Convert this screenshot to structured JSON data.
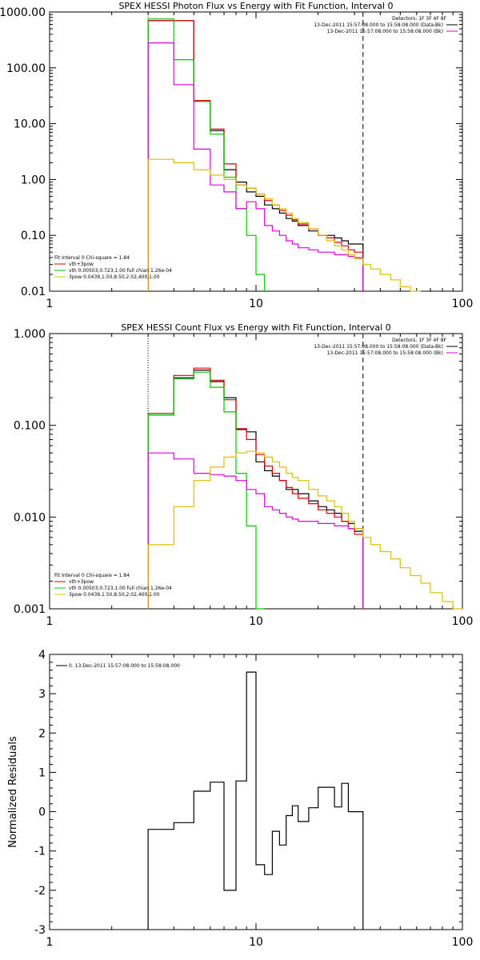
{
  "figure": {
    "colors": {
      "black": "#000000",
      "red": "#e00000",
      "green": "#00c800",
      "magenta": "#e000e0",
      "yellow": "#d8c000"
    }
  },
  "chart_data": [
    {
      "type": "line",
      "title": "SPEX HESSI Photon Flux vs Energy with Fit Function, Interval 0",
      "xlabel": "",
      "ylabel": "",
      "xscale": "log",
      "yscale": "log",
      "xlim": [
        1,
        100
      ],
      "ylim": [
        0.01,
        1000
      ],
      "x_ticks": [
        1,
        10,
        100
      ],
      "x_tick_labels": [
        "1",
        "10",
        "100"
      ],
      "y_ticks": [
        0.01,
        0.1,
        1,
        10,
        100,
        1000
      ],
      "y_tick_labels": [
        "0.01",
        "0.10",
        "1.00",
        "10.00",
        "100.00",
        "1000.00"
      ],
      "grid": false,
      "legend_topright": [
        "Detectors: 1F 3F 4F 8F",
        "13-Dec-2011 15:57:08.000 to 15:58:08.000 (Data-Bk)",
        "13-Dec-2011 15:57:08.000 to 15:58:08.000 (Bk)"
      ],
      "legend_bottomleft": [
        "Fit Interval 0   Chi-square = 1.84",
        "vth+3pow",
        "vth 0.00503,0.723,1.00  full chian 1.26e-04",
        "3pow 0.0439,1.50,8.50,2.02,400,1.00"
      ],
      "vlines": [
        {
          "x": 3,
          "style": "dotted",
          "color": "#000000"
        },
        {
          "x": 33,
          "style": "dashed",
          "color": "#000000"
        }
      ],
      "edges": [
        3,
        4,
        5,
        6,
        7,
        8,
        9,
        10,
        11,
        12,
        13,
        14,
        15,
        16,
        18,
        20,
        22,
        24,
        26,
        28,
        30,
        33,
        36,
        40,
        45,
        50,
        56,
        63
      ],
      "series": [
        {
          "color": "#000000",
          "end": 21,
          "values": [
            700,
            700,
            25,
            7.5,
            1.5,
            0.9,
            0.6,
            0.5,
            0.35,
            0.3,
            0.25,
            0.2,
            0.18,
            0.15,
            0.12,
            0.1,
            0.1,
            0.09,
            0.08,
            0.07,
            0.07
          ]
        },
        {
          "color": "#e00000",
          "end": 21,
          "values": [
            700,
            700,
            26,
            8,
            1.9,
            0.8,
            0.7,
            0.55,
            0.42,
            0.35,
            0.28,
            0.23,
            0.19,
            0.16,
            0.13,
            0.1,
            0.09,
            0.075,
            0.065,
            0.055,
            0.05
          ]
        },
        {
          "color": "#00c800",
          "end": 8,
          "values": [
            750,
            140,
            25,
            6.5,
            1.1,
            0.3,
            0.1,
            0.02
          ]
        },
        {
          "color": "#e000e0",
          "end": 21,
          "values": [
            280,
            50,
            3.5,
            0.8,
            0.6,
            0.3,
            0.4,
            0.3,
            0.15,
            0.12,
            0.1,
            0.08,
            0.07,
            0.06,
            0.055,
            0.05,
            0.05,
            0.045,
            0.045,
            0.042,
            0.04
          ]
        },
        {
          "color": "#d8c000",
          "end": 27,
          "values": [
            2.3,
            2.0,
            1.5,
            1.2,
            1.0,
            0.8,
            0.7,
            0.55,
            0.45,
            0.35,
            0.3,
            0.25,
            0.2,
            0.17,
            0.13,
            0.1,
            0.08,
            0.065,
            0.055,
            0.045,
            0.038,
            0.03,
            0.025,
            0.02,
            0.016,
            0.012,
            0.01
          ]
        }
      ]
    },
    {
      "type": "line",
      "title": "SPEX HESSI Count Flux vs Energy with Fit Function, Interval 0",
      "xlabel": "",
      "ylabel": "",
      "xscale": "log",
      "yscale": "log",
      "xlim": [
        1,
        100
      ],
      "ylim": [
        0.001,
        1
      ],
      "x_ticks": [
        1,
        10,
        100
      ],
      "x_tick_labels": [
        "1",
        "10",
        "100"
      ],
      "y_ticks": [
        0.001,
        0.01,
        0.1,
        1
      ],
      "y_tick_labels": [
        "0.001",
        "0.010",
        "0.100",
        "1.000"
      ],
      "grid": false,
      "legend_topright": [
        "Detectors: 1F 3F 4F 8F",
        "13-Dec-2011 15:57:08.000 to 15:58:08.000 (Data-Bk)",
        "13-Dec-2011 15:57:08.000 to 15:58:08.000 (Bk)"
      ],
      "legend_bottomleft": [
        "Fit Interval 0   Chi-square = 1.84",
        "vth+3pow",
        "vth 0.00503,0.723,1.00  full chian 1.26e-04",
        "3pow 0.0439,1.50,8.50,2.02,400,1.00"
      ],
      "vlines": [
        {
          "x": 3,
          "style": "dotted",
          "color": "#000000"
        },
        {
          "x": 33,
          "style": "dashed",
          "color": "#000000"
        }
      ],
      "edges": [
        3,
        4,
        5,
        6,
        7,
        8,
        9,
        10,
        11,
        12,
        13,
        14,
        15,
        16,
        18,
        20,
        22,
        24,
        26,
        28,
        30,
        33,
        36,
        40,
        45,
        50,
        56,
        63,
        70,
        80,
        90,
        100
      ],
      "series": [
        {
          "color": "#000000",
          "end": 21,
          "values": [
            0.13,
            0.33,
            0.4,
            0.3,
            0.2,
            0.09,
            0.085,
            0.04,
            0.032,
            0.028,
            0.025,
            0.02,
            0.02,
            0.018,
            0.015,
            0.013,
            0.012,
            0.011,
            0.009,
            0.0085,
            0.007
          ]
        },
        {
          "color": "#e00000",
          "end": 21,
          "values": [
            0.135,
            0.35,
            0.42,
            0.31,
            0.19,
            0.092,
            0.07,
            0.048,
            0.036,
            0.03,
            0.025,
            0.021,
            0.018,
            0.016,
            0.014,
            0.012,
            0.011,
            0.01,
            0.009,
            0.0075,
            0.0065
          ]
        },
        {
          "color": "#00c800",
          "end": 8,
          "values": [
            0.13,
            0.32,
            0.38,
            0.26,
            0.14,
            0.03,
            0.008,
            0.001
          ]
        },
        {
          "color": "#e000e0",
          "end": 21,
          "values": [
            0.05,
            0.043,
            0.03,
            0.029,
            0.028,
            0.025,
            0.02,
            0.018,
            0.013,
            0.012,
            0.011,
            0.01,
            0.0095,
            0.009,
            0.009,
            0.0085,
            0.0085,
            0.008,
            0.008,
            0.0075,
            0.0075
          ]
        },
        {
          "color": "#d8c000",
          "end": 31,
          "values": [
            0.005,
            0.013,
            0.025,
            0.035,
            0.045,
            0.05,
            0.052,
            0.05,
            0.045,
            0.04,
            0.035,
            0.03,
            0.027,
            0.025,
            0.02,
            0.017,
            0.015,
            0.013,
            0.011,
            0.009,
            0.0075,
            0.006,
            0.005,
            0.0042,
            0.0035,
            0.0028,
            0.0023,
            0.0019,
            0.0015,
            0.0012,
            0.001
          ]
        }
      ]
    },
    {
      "type": "line",
      "title": "",
      "xlabel": "",
      "ylabel": "Normalized Residuals",
      "xscale": "log",
      "yscale": "linear",
      "xlim": [
        1,
        100
      ],
      "ylim": [
        -3,
        4
      ],
      "x_ticks": [
        1,
        10,
        100
      ],
      "x_tick_labels": [
        "1",
        "10",
        "100"
      ],
      "y_ticks": [
        -3,
        -2,
        -1,
        0,
        1,
        2,
        3,
        4
      ],
      "y_tick_labels": [
        "-3",
        "-2",
        "-1",
        "0",
        "1",
        "2",
        "3",
        "4"
      ],
      "grid": false,
      "legend_topleft": [
        "0. 13-Dec-2011 15:57:08.000 to 15:58:08.000"
      ],
      "edges": [
        3,
        4,
        5,
        6,
        7,
        8,
        9,
        10,
        11,
        12,
        13,
        14,
        15,
        16,
        18,
        20,
        22,
        24,
        26,
        28,
        30,
        33
      ],
      "series": [
        {
          "color": "#000000",
          "end": 21,
          "values": [
            -0.45,
            -0.28,
            0.52,
            0.75,
            -2.0,
            0.78,
            3.55,
            -1.35,
            -1.6,
            -0.5,
            -0.85,
            -0.1,
            0.15,
            -0.25,
            0.1,
            0.62,
            0.62,
            0.12,
            0.72,
            0.0,
            0.0
          ]
        }
      ]
    }
  ]
}
